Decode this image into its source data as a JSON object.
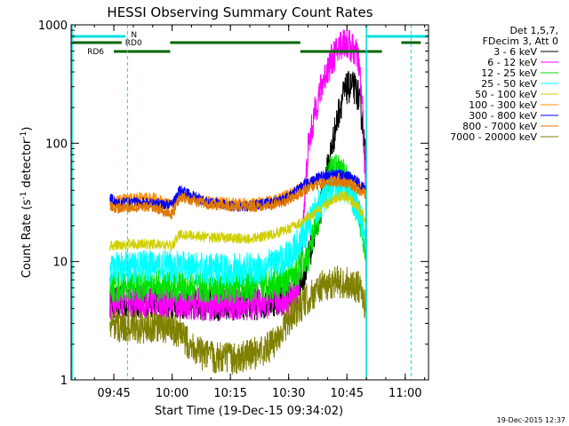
{
  "chart_data": {
    "type": "line",
    "title": "HESSI Observing Summary Count Rates",
    "xlabel": "Start Time (19-Dec-15 09:34:02)",
    "ylabel": "Count Rate (s",
    "ylabel_sup": "-1",
    "ylabel_mid": " detector",
    "ylabel_end": ")",
    "yscale": "log",
    "x_units": "minutes after 09:34:02",
    "xlim": [
      0,
      92
    ],
    "ylim": [
      1,
      1000
    ],
    "x_ticks": [
      {
        "t": 11,
        "label": "09:45"
      },
      {
        "t": 26,
        "label": "10:00"
      },
      {
        "t": 41,
        "label": "10:15"
      },
      {
        "t": 56,
        "label": "10:30"
      },
      {
        "t": 71,
        "label": "10:45"
      },
      {
        "t": 86,
        "label": "11:00"
      }
    ],
    "y_ticks": [
      {
        "v": 1,
        "label": "1"
      },
      {
        "v": 10,
        "label": "10"
      },
      {
        "v": 100,
        "label": "100"
      },
      {
        "v": 1000,
        "label": "1000"
      }
    ],
    "legend_header": [
      "Det 1,5,7,",
      "FDecim 3, Att 0"
    ],
    "footer_date": "19-Dec-2015 12:37",
    "data_window": [
      10,
      76
    ],
    "dashed_lines_t": [
      14.5,
      87.5
    ],
    "solid_line_t": 0,
    "series": [
      {
        "name": "3 - 6 keV",
        "color": "#000000",
        "points": [
          [
            10,
            4.5
          ],
          [
            14,
            4.5
          ],
          [
            22,
            4.6
          ],
          [
            26,
            4.5
          ],
          [
            36,
            4.3
          ],
          [
            48,
            4.4
          ],
          [
            56,
            5
          ],
          [
            58,
            5.5
          ],
          [
            60,
            8
          ],
          [
            62,
            14
          ],
          [
            64,
            28
          ],
          [
            66,
            60
          ],
          [
            68,
            130
          ],
          [
            69,
            190
          ],
          [
            70,
            250
          ],
          [
            71,
            290
          ],
          [
            72,
            300
          ],
          [
            73,
            290
          ],
          [
            74,
            250
          ],
          [
            75,
            150
          ],
          [
            76,
            60
          ]
        ]
      },
      {
        "name": "6 - 12 keV",
        "color": "#ff00ff",
        "points": [
          [
            10,
            4.5
          ],
          [
            14,
            4.5
          ],
          [
            22,
            4.6
          ],
          [
            26,
            4.5
          ],
          [
            36,
            4.3
          ],
          [
            48,
            4.4
          ],
          [
            56,
            4.8
          ],
          [
            58,
            5
          ],
          [
            59,
            8
          ],
          [
            60,
            30
          ],
          [
            61,
            90
          ],
          [
            63,
            200
          ],
          [
            65,
            350
          ],
          [
            67,
            500
          ],
          [
            69,
            650
          ],
          [
            70,
            720
          ],
          [
            71,
            700
          ],
          [
            72,
            650
          ],
          [
            73,
            600
          ],
          [
            74,
            500
          ],
          [
            75,
            200
          ],
          [
            76,
            30
          ]
        ]
      },
      {
        "name": "12 - 25 keV",
        "color": "#00e000",
        "points": [
          [
            10,
            6
          ],
          [
            14,
            6.3
          ],
          [
            22,
            6.3
          ],
          [
            26,
            6.2
          ],
          [
            36,
            6
          ],
          [
            48,
            6.2
          ],
          [
            55,
            6.8
          ],
          [
            58,
            8
          ],
          [
            61,
            11
          ],
          [
            64,
            25
          ],
          [
            66,
            50
          ],
          [
            67,
            60
          ],
          [
            68,
            62
          ],
          [
            70,
            55
          ],
          [
            72,
            42
          ],
          [
            74,
            25
          ],
          [
            75,
            18
          ],
          [
            76,
            12
          ]
        ]
      },
      {
        "name": "25 - 50 keV",
        "color": "#00ffff",
        "points": [
          [
            10,
            8.5
          ],
          [
            14,
            9
          ],
          [
            22,
            9.2
          ],
          [
            26,
            9
          ],
          [
            36,
            8.5
          ],
          [
            48,
            8.7
          ],
          [
            54,
            10
          ],
          [
            57,
            12
          ],
          [
            60,
            17
          ],
          [
            63,
            28
          ],
          [
            66,
            38
          ],
          [
            68,
            45
          ],
          [
            70,
            45
          ],
          [
            72,
            38
          ],
          [
            74,
            26
          ],
          [
            75,
            20
          ],
          [
            76,
            15
          ]
        ]
      },
      {
        "name": "50 - 100 keV",
        "color": "#d0d000",
        "points": [
          [
            10,
            13.5
          ],
          [
            14,
            14
          ],
          [
            22,
            14
          ],
          [
            26,
            13.5
          ],
          [
            28,
            17
          ],
          [
            36,
            16
          ],
          [
            46,
            15.5
          ],
          [
            52,
            17
          ],
          [
            56,
            19
          ],
          [
            60,
            22
          ],
          [
            64,
            28
          ],
          [
            68,
            34
          ],
          [
            70,
            36
          ],
          [
            72,
            33
          ],
          [
            74,
            28
          ],
          [
            75,
            25
          ],
          [
            76,
            20
          ]
        ]
      },
      {
        "name": "100 - 300 keV",
        "color": "#ff8c00",
        "points": [
          [
            10,
            30
          ],
          [
            12,
            33
          ],
          [
            18,
            35
          ],
          [
            22,
            34
          ],
          [
            26,
            30
          ],
          [
            28,
            36
          ],
          [
            36,
            32
          ],
          [
            46,
            31
          ],
          [
            52,
            33
          ],
          [
            56,
            37
          ],
          [
            60,
            44
          ],
          [
            64,
            50
          ],
          [
            68,
            52
          ],
          [
            72,
            48
          ],
          [
            74,
            44
          ],
          [
            76,
            40
          ]
        ]
      },
      {
        "name": "300 - 800 keV",
        "color": "#0000ff",
        "points": [
          [
            10,
            35
          ],
          [
            12,
            31
          ],
          [
            18,
            32
          ],
          [
            22,
            31
          ],
          [
            26,
            30
          ],
          [
            28,
            40
          ],
          [
            34,
            33
          ],
          [
            42,
            29
          ],
          [
            48,
            30
          ],
          [
            52,
            32
          ],
          [
            56,
            35
          ],
          [
            60,
            45
          ],
          [
            64,
            52
          ],
          [
            68,
            55
          ],
          [
            72,
            52
          ],
          [
            74,
            46
          ],
          [
            76,
            40
          ]
        ]
      },
      {
        "name": "800 - 7000 keV",
        "color": "#e07800",
        "points": [
          [
            10,
            29
          ],
          [
            12,
            28
          ],
          [
            18,
            29
          ],
          [
            22,
            28
          ],
          [
            26,
            25
          ],
          [
            28,
            35
          ],
          [
            36,
            30
          ],
          [
            46,
            29
          ],
          [
            52,
            30
          ],
          [
            56,
            33
          ],
          [
            60,
            40
          ],
          [
            64,
            45
          ],
          [
            68,
            47
          ],
          [
            72,
            45
          ],
          [
            74,
            40
          ],
          [
            76,
            36
          ]
        ]
      },
      {
        "name": "7000 - 20000 keV",
        "color": "#808000",
        "points": [
          [
            10,
            2.8
          ],
          [
            14,
            2.9
          ],
          [
            18,
            2.7
          ],
          [
            22,
            2.8
          ],
          [
            26,
            2.7
          ],
          [
            28,
            2.4
          ],
          [
            34,
            1.6
          ],
          [
            42,
            1.5
          ],
          [
            48,
            1.7
          ],
          [
            52,
            2
          ],
          [
            56,
            3.2
          ],
          [
            60,
            4.5
          ],
          [
            64,
            6
          ],
          [
            68,
            6.8
          ],
          [
            72,
            6.5
          ],
          [
            74,
            6
          ],
          [
            76,
            4
          ]
        ]
      }
    ],
    "bars": [
      {
        "name": "N",
        "color": "#00e0e0",
        "thick": true,
        "level": "top",
        "segments": [
          [
            0,
            14
          ],
          [
            76,
            92
          ]
        ]
      },
      {
        "name": "RD0",
        "color": "#006400",
        "thick": true,
        "level": "mid",
        "segments": [
          [
            0,
            13
          ],
          [
            25.5,
            59
          ],
          [
            85,
            90
          ]
        ]
      },
      {
        "name": "RD6",
        "color": "#006400",
        "thick": true,
        "level": "low",
        "segments": [
          [
            11,
            25.5
          ],
          [
            59,
            80
          ]
        ]
      }
    ]
  }
}
